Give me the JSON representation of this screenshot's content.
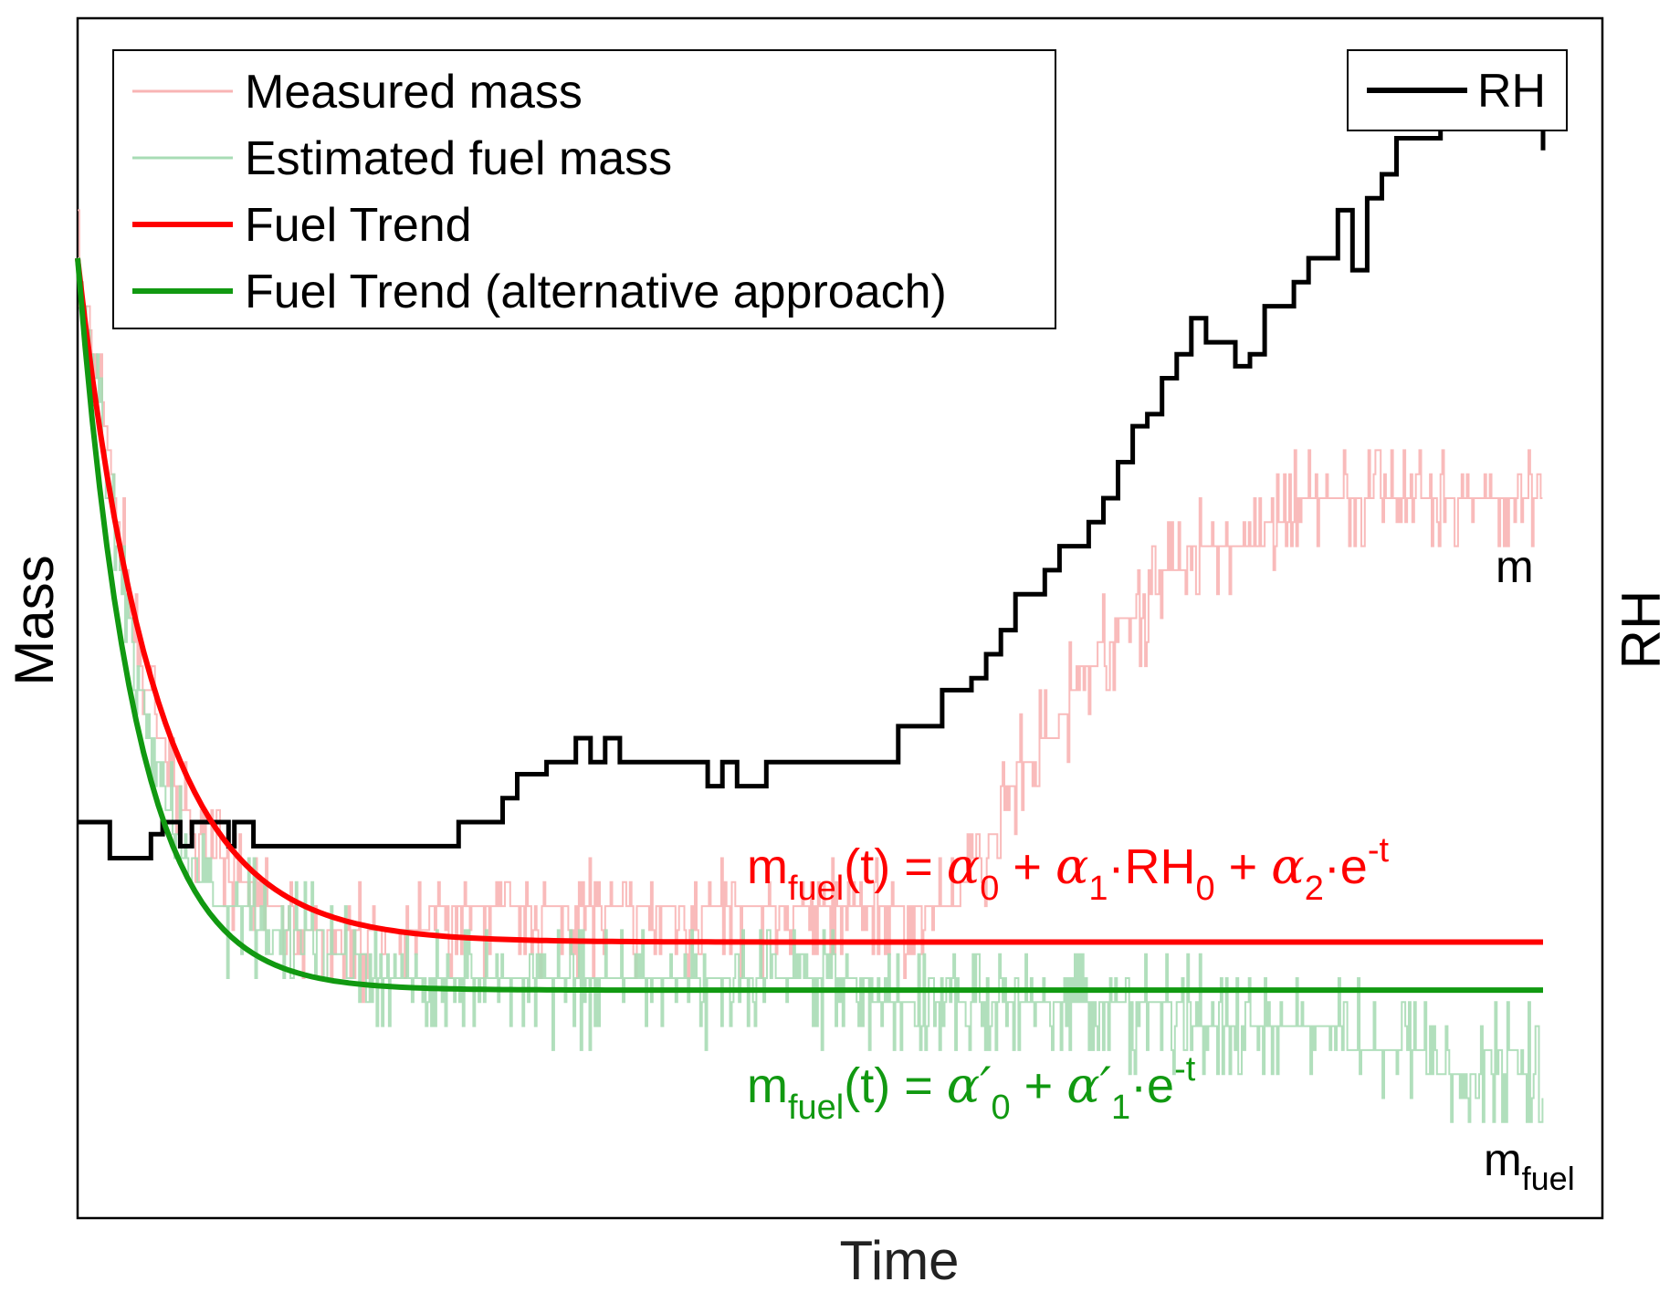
{
  "chart_data": {
    "type": "line",
    "title": "",
    "xlabel": "Time",
    "ylabel": "Mass",
    "y2label": "RH",
    "axis_range_note": "normalized units; axes have no tick labels",
    "xlim": [
      0,
      100
    ],
    "ylim": [
      0,
      100
    ],
    "y2lim": [
      0,
      100
    ],
    "grid": false,
    "legend": {
      "placement": "top-left",
      "entries": [
        {
          "label": "Measured mass",
          "color": "#f8b4b4"
        },
        {
          "label": "Estimated fuel mass",
          "color": "#a8dcb5"
        },
        {
          "label": "Fuel Trend",
          "color": "#ff0000"
        },
        {
          "label": "Fuel Trend (alternative approach)",
          "color": "#119911"
        }
      ]
    },
    "legend2": {
      "placement": "top-right",
      "entries": [
        {
          "label": "RH",
          "color": "#000000"
        }
      ]
    },
    "series": [
      {
        "name": "RH",
        "axis": "y2",
        "color": "#000000",
        "x": [
          0,
          2,
          2.2,
          4.2,
          5,
          5.8,
          6.5,
          7,
          7.8,
          9,
          10,
          10.3,
          10.7,
          11,
          12,
          13,
          14,
          16,
          18,
          20,
          22,
          24,
          26,
          28,
          29,
          30,
          31,
          32,
          33,
          34,
          35,
          36,
          37,
          38,
          39,
          40,
          41,
          42,
          43,
          44,
          45,
          46,
          47,
          48,
          49,
          50,
          51,
          52,
          53,
          54,
          55,
          56,
          57,
          58,
          59,
          60,
          61,
          62,
          63,
          64,
          65,
          66,
          67,
          68,
          69,
          70,
          71,
          72,
          73,
          74,
          75,
          76,
          77,
          78,
          79,
          80,
          81,
          82,
          83,
          84,
          85,
          86,
          87,
          88,
          89,
          90,
          91,
          92,
          93,
          94,
          95,
          96,
          97,
          98,
          99,
          100
        ],
        "values": [
          33,
          33,
          30,
          30,
          32,
          33,
          33,
          31,
          33,
          33,
          33,
          31,
          33,
          33,
          31,
          31,
          31,
          31,
          31,
          31,
          31,
          31,
          33,
          33,
          35,
          37,
          37,
          38,
          38,
          40,
          38,
          40,
          38,
          38,
          38,
          38,
          38,
          38,
          36,
          38,
          36,
          36,
          38,
          38,
          38,
          38,
          38,
          38,
          38,
          38,
          38,
          41,
          41,
          41,
          44,
          44,
          45,
          47,
          49,
          52,
          52,
          54,
          56,
          56,
          58,
          60,
          63,
          66,
          67,
          70,
          72,
          75,
          73,
          73,
          71,
          72,
          76,
          76,
          78,
          80,
          80,
          84,
          79,
          85,
          87,
          90,
          90,
          90,
          92,
          92,
          93,
          92,
          92,
          91,
          92,
          89
        ]
      },
      {
        "name": "Fuel Trend",
        "color": "#ff0000",
        "equation": "m_fuel(t) = α_0 + α_1·RH_0 + α_2·e^-t",
        "asymptote": 23,
        "initial": 80,
        "rate": 0.19
      },
      {
        "name": "Fuel Trend (alternative approach)",
        "color": "#119911",
        "equation": "m_fuel(t) = α′_0 + α′_1·e^-t",
        "asymptote": 19,
        "initial": 80,
        "rate": 0.25
      },
      {
        "name": "Measured mass",
        "color": "#f8b4b4",
        "x": [
          0,
          2,
          4,
          6,
          8,
          10,
          12,
          14,
          16,
          18,
          20,
          22,
          24,
          26,
          28,
          30,
          32,
          34,
          36,
          38,
          40,
          42,
          44,
          46,
          48,
          50,
          52,
          54,
          56,
          58,
          60,
          62,
          64,
          66,
          68,
          70,
          72,
          74,
          76,
          78,
          80,
          82,
          84,
          86,
          88,
          90,
          92,
          94,
          96,
          98,
          100
        ],
        "values": [
          80,
          65,
          48,
          38,
          32,
          29,
          27,
          25,
          24,
          23,
          23,
          23,
          25,
          25,
          25,
          25,
          25,
          25,
          25,
          25,
          25,
          25,
          25,
          25,
          25,
          25,
          25,
          25,
          25,
          25,
          27,
          31,
          37,
          40,
          44,
          48,
          50,
          53,
          55,
          56,
          56,
          58,
          60,
          59,
          60,
          60,
          60,
          59,
          59,
          59,
          59
        ]
      },
      {
        "name": "Estimated fuel mass",
        "color": "#a8dcb5",
        "x": [
          0,
          2,
          4,
          6,
          8,
          10,
          12,
          14,
          16,
          18,
          20,
          22,
          24,
          26,
          28,
          30,
          32,
          34,
          36,
          38,
          40,
          42,
          44,
          46,
          48,
          50,
          52,
          54,
          56,
          58,
          60,
          62,
          64,
          66,
          68,
          70,
          72,
          74,
          76,
          78,
          80,
          82,
          84,
          86,
          88,
          90,
          92,
          94,
          96,
          98,
          100
        ],
        "values": [
          80,
          62,
          46,
          35,
          29,
          26,
          25,
          24,
          24,
          22,
          21,
          20,
          20,
          20,
          20,
          19,
          19,
          19,
          20,
          19,
          20,
          19,
          20,
          20,
          20,
          19,
          19,
          19,
          18,
          19,
          19,
          18,
          18,
          17,
          18,
          18,
          17,
          17,
          17,
          16,
          16,
          15,
          15,
          15,
          14,
          14,
          13,
          12,
          13,
          13,
          12
        ]
      }
    ],
    "annotations": [
      {
        "kind": "equation",
        "target": "Fuel Trend",
        "color": "#ff0000",
        "base": "m",
        "sub": "fuel",
        "text": "(t) = ",
        "terms": [
          {
            "greek": "α",
            "sub": "0",
            "op": " + "
          },
          {
            "greek": "α",
            "sub": "1",
            "tail": "·RH",
            "tailsub": "0",
            "op": " + "
          },
          {
            "greek": "α",
            "sub": "2",
            "tail": "·e",
            "sup": "-t"
          }
        ]
      },
      {
        "kind": "equation",
        "target": "Fuel Trend (alternative approach)",
        "color": "#119911",
        "base": "m",
        "sub": "fuel",
        "text": "(t) = ",
        "terms": [
          {
            "greek": "α′",
            "sub": "0",
            "op": " + "
          },
          {
            "greek": "α′",
            "sub": "1",
            "tail": "·e",
            "sup": "-t"
          }
        ]
      },
      {
        "kind": "series-label",
        "text": "m"
      },
      {
        "kind": "series-label",
        "base": "m",
        "sub": "fuel"
      }
    ]
  }
}
